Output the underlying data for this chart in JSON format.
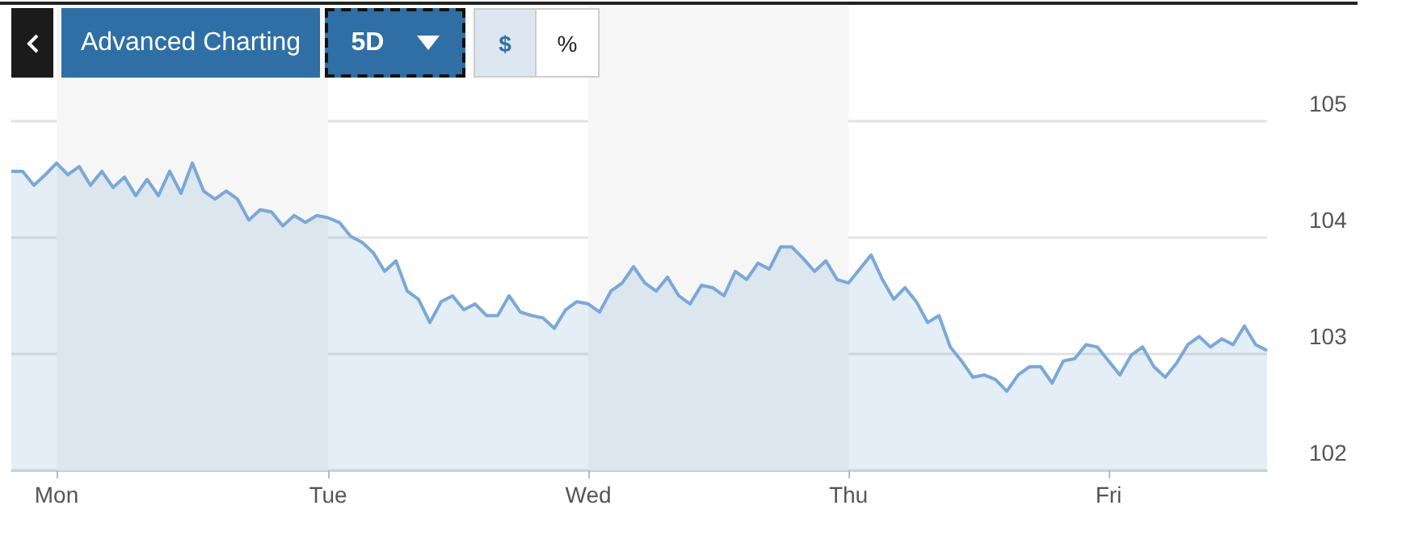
{
  "chart_data": {
    "type": "area",
    "annotations": [
      "Advanced Charting",
      "5D",
      "$",
      "%"
    ],
    "categories": [
      null,
      null,
      null,
      null,
      "Mon",
      null,
      null,
      null,
      null,
      null,
      null,
      null,
      null,
      null,
      null,
      null,
      null,
      null,
      null,
      null,
      null,
      null,
      null,
      null,
      null,
      null,
      null,
      null,
      "Tue",
      null,
      null,
      null,
      null,
      null,
      null,
      null,
      null,
      null,
      null,
      null,
      null,
      null,
      null,
      null,
      null,
      null,
      null,
      null,
      null,
      null,
      null,
      "Wed",
      null,
      null,
      null,
      null,
      null,
      null,
      null,
      null,
      null,
      null,
      null,
      null,
      null,
      null,
      null,
      null,
      null,
      null,
      null,
      null,
      null,
      null,
      "Thu",
      null,
      null,
      null,
      null,
      null,
      null,
      null,
      null,
      null,
      null,
      null,
      null,
      null,
      null,
      null,
      null,
      null,
      null,
      null,
      null,
      null,
      null,
      "Fri",
      null,
      null,
      null,
      null,
      null,
      null,
      null,
      null,
      null,
      null,
      null,
      null,
      null,
      null
    ],
    "series": [
      {
        "color": "#7aa8d8",
        "values": [
          104.57,
          104.57,
          104.45,
          104.54,
          104.64,
          104.54,
          104.61,
          104.45,
          104.57,
          104.43,
          104.52,
          104.36,
          104.5,
          104.36,
          104.57,
          104.38,
          104.64,
          104.4,
          104.33,
          104.4,
          104.33,
          104.15,
          104.24,
          104.22,
          104.1,
          104.19,
          104.13,
          104.19,
          104.17,
          104.13,
          104.01,
          103.96,
          103.87,
          103.71,
          103.8,
          103.54,
          103.47,
          103.27,
          103.45,
          103.5,
          103.38,
          103.43,
          103.33,
          103.33,
          103.5,
          103.36,
          103.33,
          103.31,
          103.22,
          103.38,
          103.45,
          103.43,
          103.36,
          103.54,
          103.61,
          103.75,
          103.61,
          103.54,
          103.66,
          103.5,
          103.43,
          103.59,
          103.57,
          103.5,
          103.71,
          103.64,
          103.78,
          103.73,
          103.92,
          103.92,
          103.82,
          103.71,
          103.8,
          103.64,
          103.61,
          103.73,
          103.85,
          103.64,
          103.47,
          103.57,
          103.45,
          103.27,
          103.33,
          103.06,
          102.94,
          102.8,
          102.82,
          102.78,
          102.68,
          102.82,
          102.89,
          102.89,
          102.75,
          102.94,
          102.96,
          103.08,
          103.06,
          102.94,
          102.82,
          102.99,
          103.06,
          102.89,
          102.8,
          102.92,
          103.08,
          103.15,
          103.06,
          103.13,
          103.08,
          103.24,
          103.08,
          103.03
        ]
      }
    ],
    "ylim": [
      102,
      106
    ],
    "yticks": [
      102,
      103,
      104,
      105
    ],
    "grid": "y",
    "bands": [
      {
        "axis": "x",
        "from": "Mon",
        "to": "Tue",
        "color": "#f6f6f6"
      },
      {
        "axis": "x",
        "from": "Wed",
        "to": "Thu",
        "color": "#f6f6f6"
      }
    ]
  }
}
